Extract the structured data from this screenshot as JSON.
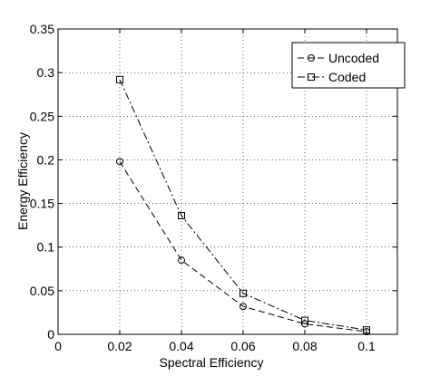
{
  "chart_data": {
    "type": "line",
    "title": "",
    "xlabel": "Spectral Efficiency",
    "ylabel": "Energy Efficiency",
    "xlim": [
      0,
      0.11
    ],
    "ylim": [
      0,
      0.35
    ],
    "x_ticks": [
      0,
      0.02,
      0.04,
      0.06,
      0.08,
      0.1
    ],
    "x_tick_labels": [
      "0",
      "0.02",
      "0.04",
      "0.06",
      "0.08",
      "0.1"
    ],
    "y_ticks": [
      0,
      0.05,
      0.1,
      0.15,
      0.2,
      0.25,
      0.3,
      0.35
    ],
    "y_tick_labels": [
      "0",
      "0.05",
      "0.1",
      "0.15",
      "0.2",
      "0.25",
      "0.3",
      "0.35"
    ],
    "grid": true,
    "legend_position": "top-right",
    "series": [
      {
        "name": "Uncoded",
        "marker": "circle",
        "line_style": "dashed",
        "color": "#000000",
        "x": [
          0.02,
          0.04,
          0.06,
          0.08,
          0.1
        ],
        "y": [
          0.198,
          0.085,
          0.032,
          0.012,
          0.003
        ]
      },
      {
        "name": "Coded",
        "marker": "square",
        "line_style": "dash-dot",
        "color": "#000000",
        "x": [
          0.02,
          0.04,
          0.06,
          0.08,
          0.1
        ],
        "y": [
          0.292,
          0.136,
          0.047,
          0.016,
          0.005
        ]
      }
    ]
  }
}
